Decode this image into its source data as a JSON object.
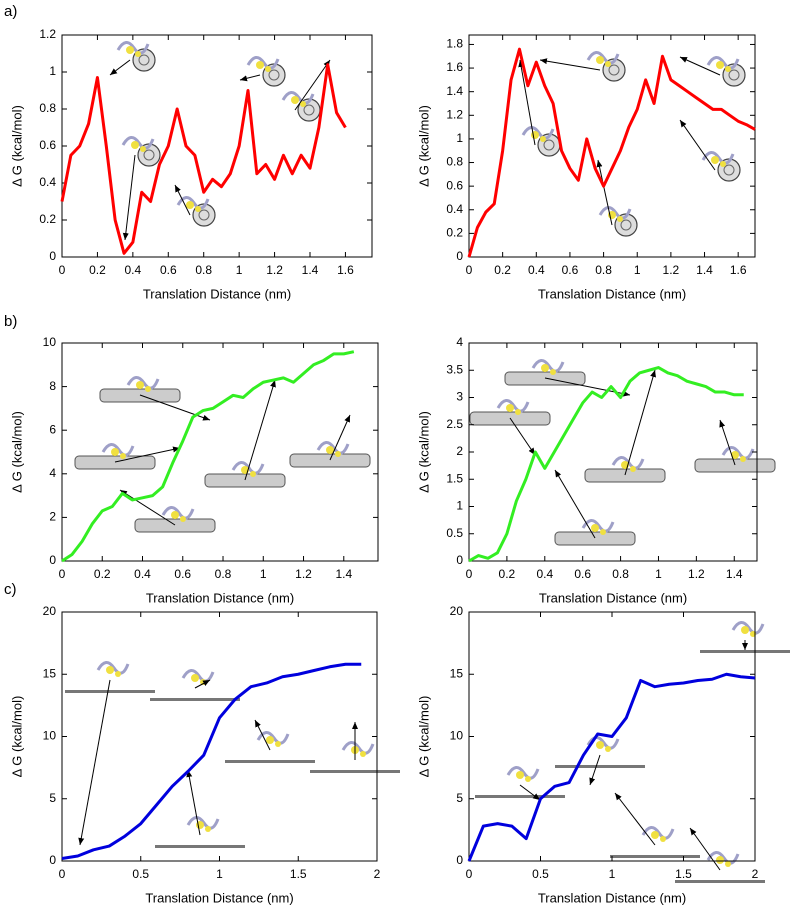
{
  "chart_data": [
    {
      "type": "line",
      "panel_label": "a)",
      "x_label": "Translation Distance (nm)",
      "y_label": "Δ G (kcal/mol)",
      "x": [
        0,
        0.05,
        0.1,
        0.15,
        0.2,
        0.25,
        0.3,
        0.35,
        0.4,
        0.45,
        0.5,
        0.55,
        0.6,
        0.65,
        0.7,
        0.75,
        0.8,
        0.85,
        0.9,
        0.95,
        1.0,
        1.05,
        1.1,
        1.15,
        1.2,
        1.25,
        1.3,
        1.35,
        1.4,
        1.45,
        1.5,
        1.55,
        1.6
      ],
      "series": [
        {
          "color": "#ff0000",
          "values": [
            0.3,
            0.55,
            0.6,
            0.72,
            0.97,
            0.6,
            0.2,
            0.02,
            0.08,
            0.35,
            0.3,
            0.5,
            0.6,
            0.8,
            0.6,
            0.55,
            0.35,
            0.42,
            0.38,
            0.45,
            0.6,
            0.9,
            0.45,
            0.5,
            0.42,
            0.55,
            0.45,
            0.55,
            0.48,
            0.7,
            1.04,
            0.78,
            0.7
          ]
        }
      ],
      "xlim": [
        0,
        1.75
      ],
      "ylim": [
        0,
        1.2
      ],
      "xticks": [
        0,
        0.2,
        0.4,
        0.6,
        0.8,
        1,
        1.2,
        1.4,
        1.6
      ],
      "yticks": [
        0,
        0.2,
        0.4,
        0.6,
        0.8,
        1,
        1.2
      ]
    },
    {
      "type": "line",
      "x_label": "Translation Distance (nm)",
      "y_label": "Δ G (kcal/mol)",
      "x": [
        0,
        0.05,
        0.1,
        0.15,
        0.2,
        0.25,
        0.3,
        0.35,
        0.4,
        0.45,
        0.5,
        0.55,
        0.6,
        0.65,
        0.7,
        0.75,
        0.8,
        0.85,
        0.9,
        0.95,
        1.0,
        1.05,
        1.1,
        1.15,
        1.2,
        1.25,
        1.3,
        1.35,
        1.4,
        1.45,
        1.5,
        1.55,
        1.6,
        1.65,
        1.7
      ],
      "series": [
        {
          "color": "#ff0000",
          "values": [
            0,
            0.25,
            0.38,
            0.45,
            0.9,
            1.5,
            1.76,
            1.45,
            1.65,
            1.45,
            1.3,
            0.9,
            0.75,
            0.65,
            1.0,
            0.75,
            0.6,
            0.75,
            0.9,
            1.1,
            1.25,
            1.5,
            1.3,
            1.7,
            1.5,
            1.45,
            1.4,
            1.35,
            1.3,
            1.25,
            1.25,
            1.2,
            1.15,
            1.12,
            1.08
          ]
        }
      ],
      "xlim": [
        0,
        1.7
      ],
      "ylim": [
        0,
        1.88
      ],
      "xticks": [
        0,
        0.2,
        0.4,
        0.6,
        0.8,
        1,
        1.2,
        1.4,
        1.6
      ],
      "yticks": [
        0,
        0.2,
        0.4,
        0.6,
        0.8,
        1,
        1.2,
        1.4,
        1.6,
        1.8
      ]
    },
    {
      "type": "line",
      "panel_label": "b)",
      "x_label": "Translation Distance (nm)",
      "y_label": "Δ G (kcal/mol)",
      "x": [
        0,
        0.05,
        0.1,
        0.15,
        0.2,
        0.25,
        0.3,
        0.35,
        0.4,
        0.45,
        0.5,
        0.55,
        0.6,
        0.65,
        0.7,
        0.75,
        0.8,
        0.85,
        0.9,
        0.95,
        1.0,
        1.05,
        1.1,
        1.15,
        1.2,
        1.25,
        1.3,
        1.35,
        1.4,
        1.45
      ],
      "series": [
        {
          "color": "#33ee22",
          "values": [
            0,
            0.3,
            0.9,
            1.7,
            2.3,
            2.5,
            3.1,
            2.8,
            2.9,
            3.0,
            3.4,
            4.5,
            5.5,
            6.6,
            6.9,
            7.0,
            7.3,
            7.6,
            7.5,
            7.9,
            8.2,
            8.3,
            8.4,
            8.2,
            8.6,
            9.0,
            9.2,
            9.5,
            9.5,
            9.6
          ]
        }
      ],
      "xlim": [
        0,
        1.57
      ],
      "ylim": [
        0,
        10
      ],
      "xticks": [
        0,
        0.2,
        0.4,
        0.6,
        0.8,
        1,
        1.2,
        1.4
      ],
      "yticks": [
        0,
        2,
        4,
        6,
        8,
        10
      ]
    },
    {
      "type": "line",
      "x_label": "Translation Distance (nm)",
      "y_label": "Δ G (kcal/mol)",
      "x": [
        0,
        0.05,
        0.1,
        0.15,
        0.2,
        0.25,
        0.3,
        0.35,
        0.4,
        0.45,
        0.5,
        0.55,
        0.6,
        0.65,
        0.7,
        0.75,
        0.8,
        0.85,
        0.9,
        0.95,
        1.0,
        1.05,
        1.1,
        1.15,
        1.2,
        1.25,
        1.3,
        1.35,
        1.4,
        1.45
      ],
      "series": [
        {
          "color": "#33ee22",
          "values": [
            0,
            0.1,
            0.05,
            0.15,
            0.5,
            1.1,
            1.5,
            2.0,
            1.7,
            2.0,
            2.3,
            2.6,
            2.9,
            3.1,
            3.0,
            3.2,
            3.0,
            3.3,
            3.45,
            3.5,
            3.55,
            3.45,
            3.4,
            3.3,
            3.25,
            3.2,
            3.1,
            3.1,
            3.05,
            3.05
          ]
        }
      ],
      "xlim": [
        0,
        1.52
      ],
      "ylim": [
        0,
        4
      ],
      "xticks": [
        0,
        0.2,
        0.4,
        0.6,
        0.8,
        1,
        1.2,
        1.4
      ],
      "yticks": [
        0,
        0.5,
        1,
        1.5,
        2,
        2.5,
        3,
        3.5,
        4
      ]
    },
    {
      "type": "line",
      "panel_label": "c)",
      "x_label": "Translation Distance (nm)",
      "y_label": "Δ G (kcal/mol)",
      "x": [
        0,
        0.1,
        0.2,
        0.3,
        0.4,
        0.5,
        0.6,
        0.7,
        0.8,
        0.9,
        1.0,
        1.1,
        1.2,
        1.3,
        1.4,
        1.5,
        1.6,
        1.7,
        1.8,
        1.9
      ],
      "series": [
        {
          "color": "#0000dd",
          "values": [
            0.2,
            0.4,
            0.9,
            1.2,
            2.0,
            3.0,
            4.5,
            6.0,
            7.2,
            8.5,
            11.5,
            13.0,
            14.0,
            14.3,
            14.8,
            15.0,
            15.3,
            15.6,
            15.8,
            15.8
          ]
        }
      ],
      "xlim": [
        0,
        2
      ],
      "ylim": [
        0,
        20
      ],
      "xticks": [
        0,
        0.5,
        1,
        1.5,
        2
      ],
      "yticks": [
        0,
        5,
        10,
        15,
        20
      ]
    },
    {
      "type": "line",
      "x_label": "Translation Distance (nm)",
      "y_label": "Δ G (kcal/mol)",
      "x": [
        0,
        0.1,
        0.2,
        0.3,
        0.4,
        0.5,
        0.6,
        0.7,
        0.8,
        0.9,
        1.0,
        1.1,
        1.2,
        1.3,
        1.4,
        1.5,
        1.6,
        1.7,
        1.8,
        1.9,
        2.0
      ],
      "series": [
        {
          "color": "#0000dd",
          "values": [
            0,
            2.8,
            3.0,
            2.8,
            1.8,
            5.0,
            6.0,
            6.3,
            8.5,
            10.2,
            10.0,
            11.5,
            14.5,
            14.0,
            14.2,
            14.3,
            14.5,
            14.6,
            15.0,
            14.8,
            14.7
          ]
        }
      ],
      "xlim": [
        0,
        2
      ],
      "ylim": [
        0,
        20
      ],
      "xticks": [
        0,
        0.5,
        1,
        1.5,
        2
      ],
      "yticks": [
        0,
        5,
        10,
        15,
        20
      ]
    }
  ]
}
